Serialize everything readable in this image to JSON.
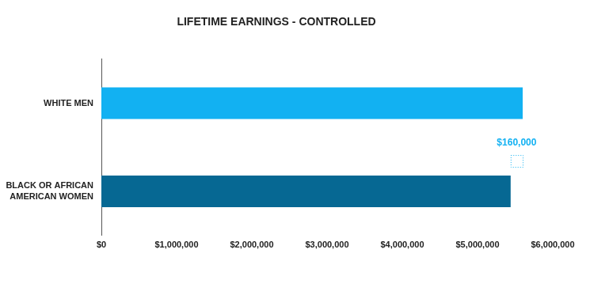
{
  "chart_data": {
    "type": "bar",
    "orientation": "horizontal",
    "title": "LIFETIME EARNINGS - CONTROLLED",
    "categories": [
      "WHITE MEN",
      "BLACK OR AFRICAN AMERICAN WOMEN"
    ],
    "values": [
      5600000,
      5440000
    ],
    "colors": [
      "#12b1f2",
      "#066893"
    ],
    "xlim": [
      0,
      6000000
    ],
    "xticks": [
      {
        "value": 0,
        "label": "$0"
      },
      {
        "value": 1000000,
        "label": "$1,000,000"
      },
      {
        "value": 2000000,
        "label": "$2,000,000"
      },
      {
        "value": 3000000,
        "label": "$3,000,000"
      },
      {
        "value": 4000000,
        "label": "$4,000,000"
      },
      {
        "value": 5000000,
        "label": "$5,000,000"
      },
      {
        "value": 6000000,
        "label": "$6,000,000"
      }
    ],
    "grid": false,
    "annotations": [
      {
        "value": 160000,
        "label": "$160,000",
        "color": "#12b1f2"
      }
    ]
  }
}
